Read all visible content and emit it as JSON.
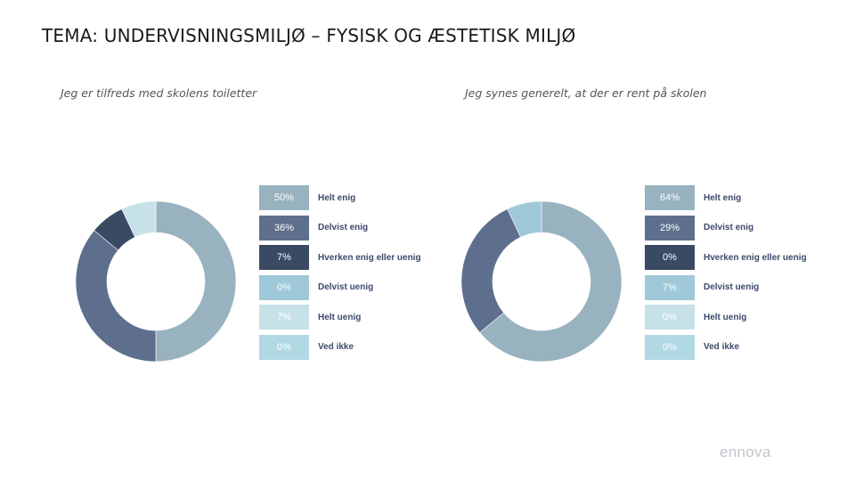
{
  "title": "TEMA: UNDERVISNINGSMILJØ – FYSISK OG ÆSTETISK MILJØ",
  "categories": [
    "Helt enig",
    "Delvist enig",
    "Hverken enig eller uenig",
    "Delvist uenig",
    "Helt uenig",
    "Ved ikke"
  ],
  "colors": [
    "#98b2bf",
    "#5d6f8c",
    "#3a4a63",
    "#9fc8d8",
    "#c6e1e8",
    "#b1d9e4"
  ],
  "chart_data": [
    {
      "type": "pie",
      "title": "Jeg er tilfreds med skolens toiletter",
      "categories": [
        "Helt enig",
        "Delvist enig",
        "Hverken enig eller uenig",
        "Delvist uenig",
        "Helt uenig",
        "Ved ikke"
      ],
      "values": [
        50,
        36,
        7,
        0,
        7,
        0
      ],
      "labels": [
        "50%",
        "36%",
        "7%",
        "0%",
        "7%",
        "0%"
      ]
    },
    {
      "type": "pie",
      "title": "Jeg synes generelt, at der er rent på skolen",
      "categories": [
        "Helt enig",
        "Delvist enig",
        "Hverken enig eller uenig",
        "Delvist uenig",
        "Helt uenig",
        "Ved ikke"
      ],
      "values": [
        64,
        29,
        0,
        7,
        0,
        0
      ],
      "labels": [
        "64%",
        "29%",
        "0%",
        "7%",
        "0%",
        "0%"
      ]
    }
  ],
  "logo": "ennova"
}
